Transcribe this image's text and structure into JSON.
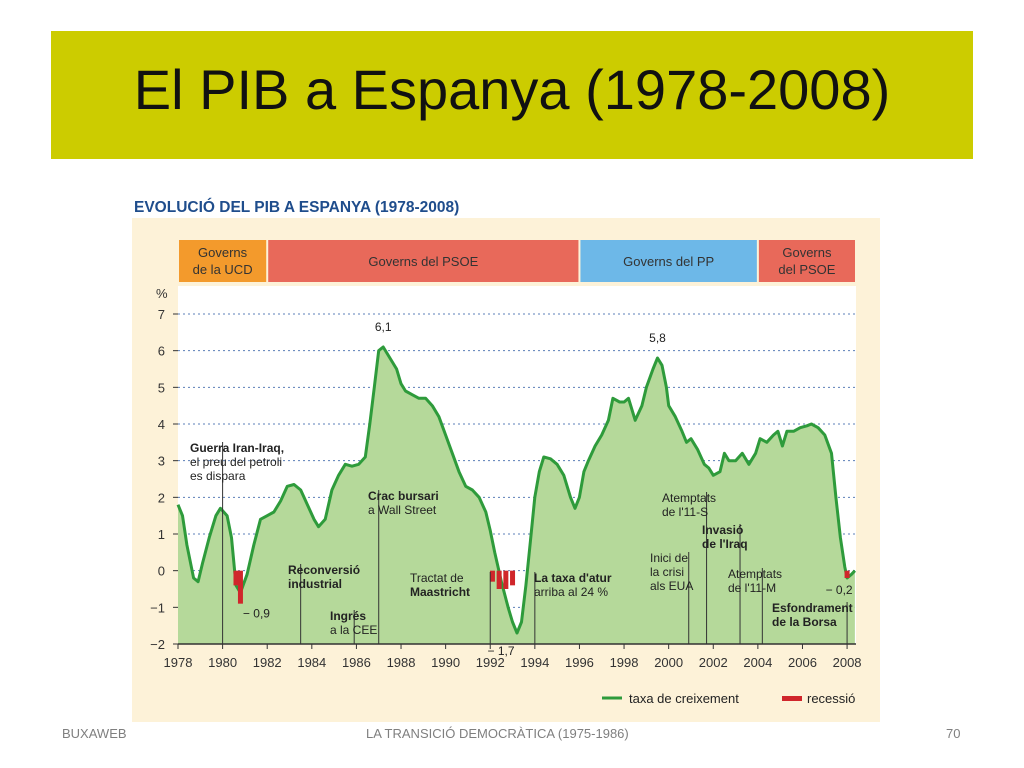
{
  "slide": {
    "title": "El PIB a Espanya (1978-2008)",
    "footer_left": "BUXAWEB",
    "footer_center": "LA TRANSICIÓ DEMOCRÀTICA (1975-1986)",
    "footer_right": "70"
  },
  "colors": {
    "title_band": "#cccc00",
    "figure_bg": "#fdf2d8",
    "plot_bg": "#ffffff",
    "area_fill": "#b5d99a",
    "line": "#2e9b3b",
    "recession": "#d0262b",
    "heading": "#1f4d8c",
    "gov_ucd": "#f39a2c",
    "gov_psoe": "#e8695a",
    "gov_pp": "#6db8e8"
  },
  "chart_data": {
    "type": "area",
    "title": "EVOLUCIÓ DEL PIB A ESPANYA (1978-2008)",
    "ylabel": "%",
    "xlim": [
      1978,
      2008.4
    ],
    "ylim": [
      -2,
      7
    ],
    "grid": true,
    "grid_style": "dotted",
    "x_ticks": [
      "1978",
      "1980",
      "1982",
      "1984",
      "1986",
      "1988",
      "1990",
      "1992",
      "1994",
      "1996",
      "1998",
      "2000",
      "2002",
      "2004",
      "2006",
      "2008"
    ],
    "y_ticks": [
      "−2",
      "−1",
      "0",
      "1",
      "2",
      "3",
      "4",
      "5",
      "6",
      "7"
    ],
    "governments": [
      {
        "label": "Governs de la UCD",
        "line1": "Governs",
        "line2": "de la UCD",
        "from": 1978,
        "to": 1982,
        "color": "#f39a2c"
      },
      {
        "label": "Governs del PSOE",
        "line1": "Governs del PSOE",
        "line2": "",
        "from": 1982,
        "to": 1996,
        "color": "#e8695a"
      },
      {
        "label": "Governs del PP",
        "line1": "Governs del PP",
        "line2": "",
        "from": 1996,
        "to": 2004,
        "color": "#6db8e8"
      },
      {
        "label": "Governs del PSOE",
        "line1": "Governs",
        "line2": "del PSOE",
        "from": 2004,
        "to": 2008.4,
        "color": "#e8695a"
      }
    ],
    "series": [
      {
        "name": "taxa de creixement",
        "points": [
          [
            1978,
            1.8
          ],
          [
            1978.2,
            1.5
          ],
          [
            1978.4,
            0.7
          ],
          [
            1978.7,
            -0.2
          ],
          [
            1978.9,
            -0.3
          ],
          [
            1979.1,
            0.2
          ],
          [
            1979.4,
            0.9
          ],
          [
            1979.7,
            1.5
          ],
          [
            1979.9,
            1.7
          ],
          [
            1980.2,
            1.5
          ],
          [
            1980.4,
            0.9
          ],
          [
            1980.6,
            -0.4
          ],
          [
            1980.8,
            -0.6
          ],
          [
            1981.1,
            -0.1
          ],
          [
            1981.4,
            0.7
          ],
          [
            1981.7,
            1.4
          ],
          [
            1982.0,
            1.5
          ],
          [
            1982.3,
            1.6
          ],
          [
            1982.6,
            1.9
          ],
          [
            1982.9,
            2.3
          ],
          [
            1983.2,
            2.35
          ],
          [
            1983.5,
            2.2
          ],
          [
            1983.8,
            1.8
          ],
          [
            1984.1,
            1.4
          ],
          [
            1984.3,
            1.2
          ],
          [
            1984.6,
            1.4
          ],
          [
            1984.9,
            2.2
          ],
          [
            1985.2,
            2.6
          ],
          [
            1985.5,
            2.9
          ],
          [
            1985.8,
            2.85
          ],
          [
            1986.1,
            2.9
          ],
          [
            1986.4,
            3.1
          ],
          [
            1986.6,
            4.0
          ],
          [
            1986.8,
            5.0
          ],
          [
            1987.0,
            6.0
          ],
          [
            1987.2,
            6.1
          ],
          [
            1987.5,
            5.8
          ],
          [
            1987.8,
            5.5
          ],
          [
            1988.0,
            5.1
          ],
          [
            1988.2,
            4.9
          ],
          [
            1988.5,
            4.8
          ],
          [
            1988.8,
            4.7
          ],
          [
            1989.1,
            4.7
          ],
          [
            1989.4,
            4.5
          ],
          [
            1989.7,
            4.2
          ],
          [
            1990.0,
            3.7
          ],
          [
            1990.3,
            3.2
          ],
          [
            1990.6,
            2.7
          ],
          [
            1990.9,
            2.3
          ],
          [
            1991.2,
            2.2
          ],
          [
            1991.5,
            2.0
          ],
          [
            1991.8,
            1.6
          ],
          [
            1992.0,
            1.1
          ],
          [
            1992.2,
            0.5
          ],
          [
            1992.5,
            -0.3
          ],
          [
            1992.8,
            -1.0
          ],
          [
            1993.0,
            -1.4
          ],
          [
            1993.2,
            -1.7
          ],
          [
            1993.4,
            -1.4
          ],
          [
            1993.6,
            -0.4
          ],
          [
            1993.8,
            0.8
          ],
          [
            1994.0,
            2.0
          ],
          [
            1994.2,
            2.7
          ],
          [
            1994.4,
            3.1
          ],
          [
            1994.7,
            3.05
          ],
          [
            1995.0,
            2.9
          ],
          [
            1995.3,
            2.6
          ],
          [
            1995.6,
            2.0
          ],
          [
            1995.8,
            1.7
          ],
          [
            1996.0,
            2.0
          ],
          [
            1996.2,
            2.7
          ],
          [
            1996.4,
            3.0
          ],
          [
            1996.7,
            3.4
          ],
          [
            1997.0,
            3.7
          ],
          [
            1997.3,
            4.1
          ],
          [
            1997.5,
            4.7
          ],
          [
            1997.8,
            4.6
          ],
          [
            1998.0,
            4.6
          ],
          [
            1998.2,
            4.7
          ],
          [
            1998.5,
            4.1
          ],
          [
            1998.8,
            4.5
          ],
          [
            1999.0,
            5.0
          ],
          [
            1999.3,
            5.5
          ],
          [
            1999.5,
            5.8
          ],
          [
            1999.7,
            5.6
          ],
          [
            1999.9,
            5.0
          ],
          [
            2000.0,
            4.5
          ],
          [
            2000.3,
            4.2
          ],
          [
            2000.6,
            3.8
          ],
          [
            2000.8,
            3.5
          ],
          [
            2001.0,
            3.6
          ],
          [
            2001.3,
            3.3
          ],
          [
            2001.6,
            2.9
          ],
          [
            2001.8,
            2.8
          ],
          [
            2002.0,
            2.6
          ],
          [
            2002.3,
            2.7
          ],
          [
            2002.5,
            3.2
          ],
          [
            2002.7,
            3.0
          ],
          [
            2003.0,
            3.0
          ],
          [
            2003.3,
            3.2
          ],
          [
            2003.6,
            2.9
          ],
          [
            2003.9,
            3.2
          ],
          [
            2004.1,
            3.6
          ],
          [
            2004.4,
            3.5
          ],
          [
            2004.7,
            3.7
          ],
          [
            2004.9,
            3.8
          ],
          [
            2005.1,
            3.4
          ],
          [
            2005.3,
            3.8
          ],
          [
            2005.6,
            3.8
          ],
          [
            2005.9,
            3.9
          ],
          [
            2006.2,
            3.95
          ],
          [
            2006.4,
            4.0
          ],
          [
            2006.7,
            3.9
          ],
          [
            2007.0,
            3.7
          ],
          [
            2007.3,
            3.2
          ],
          [
            2007.5,
            2.0
          ],
          [
            2007.7,
            0.9
          ],
          [
            2007.9,
            0.1
          ],
          [
            2008.0,
            -0.2
          ],
          [
            2008.2,
            -0.1
          ],
          [
            2008.35,
            0.0
          ]
        ]
      }
    ],
    "recession": {
      "name": "recessió",
      "bars": [
        {
          "x": 1980.6,
          "value": -0.4
        },
        {
          "x": 1980.8,
          "value": -0.9
        },
        {
          "x": 1992.1,
          "value": -0.3
        },
        {
          "x": 1992.4,
          "value": -0.5
        },
        {
          "x": 1992.7,
          "value": -0.5
        },
        {
          "x": 1993.0,
          "value": -0.4
        },
        {
          "x": 2008.0,
          "value": -0.2
        }
      ]
    },
    "data_labels": [
      {
        "text": "6,1",
        "x": 1987.2,
        "y": 6.1
      },
      {
        "text": "5,8",
        "x": 1999.5,
        "y": 5.8
      },
      {
        "text": "− 0,9",
        "x": 1980.8,
        "y": -0.9
      },
      {
        "text": "− 1,7",
        "x": 1993.2,
        "y": -1.7
      },
      {
        "text": "− 0,2",
        "x": 2008.0,
        "y": -0.2
      }
    ],
    "annotations": [
      {
        "lines": [
          "Guerra Iran-Iraq,",
          "el preu del petroli",
          "es dispara"
        ],
        "bold_lines": [
          0
        ],
        "x": 1980.0
      },
      {
        "lines": [
          "Reconversió",
          "industrial"
        ],
        "bold_lines": [
          0,
          1
        ],
        "x": 1983.5
      },
      {
        "lines": [
          "Ingrés",
          "a la CEE"
        ],
        "bold_lines": [
          0
        ],
        "x": 1985.9
      },
      {
        "lines": [
          "Crac bursari",
          "a Wall Street"
        ],
        "bold_lines": [
          0
        ],
        "x": 1987.0
      },
      {
        "lines": [
          "Tractat de",
          "Maastricht"
        ],
        "bold_lines": [
          1
        ],
        "x": 1992.0
      },
      {
        "lines": [
          "La taxa d'atur",
          "arriba al 24 %"
        ],
        "bold_lines": [
          0
        ],
        "x": 1994.0
      },
      {
        "lines": [
          "Inici de",
          "la crisi",
          "als EUA"
        ],
        "bold_lines": [],
        "x": 2000.9
      },
      {
        "lines": [
          "Atemptats",
          "de l'11-S"
        ],
        "bold_lines": [],
        "x": 2001.7
      },
      {
        "lines": [
          "Invasió",
          "de l'Iraq"
        ],
        "bold_lines": [
          0,
          1
        ],
        "x": 2003.2
      },
      {
        "lines": [
          "Atemptats",
          "de l'11-M"
        ],
        "bold_lines": [],
        "x": 2004.2
      },
      {
        "lines": [
          "Esfondrament",
          "de la Borsa"
        ],
        "bold_lines": [
          0,
          1
        ],
        "x": 2008.0
      }
    ],
    "legend": {
      "position": "bottom-right",
      "items": [
        {
          "label": "taxa de creixement",
          "type": "line",
          "color": "#2e9b3b"
        },
        {
          "label": "recessió",
          "type": "bar",
          "color": "#d0262b"
        }
      ]
    }
  }
}
